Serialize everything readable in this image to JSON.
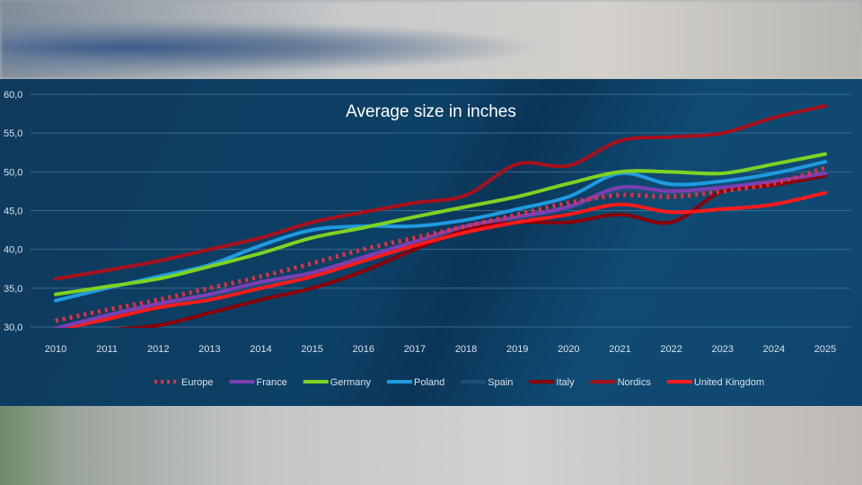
{
  "chart_data": {
    "type": "line",
    "title": "Average size in inches",
    "xlabel": "",
    "ylabel": "",
    "x": [
      2010,
      2011,
      2012,
      2013,
      2014,
      2015,
      2016,
      2017,
      2018,
      2019,
      2020,
      2021,
      2022,
      2023,
      2024,
      2025
    ],
    "ylim": [
      30,
      60
    ],
    "yticks": [
      "30,0",
      "35,0",
      "40,0",
      "45,0",
      "50,0",
      "55,0",
      "60,0"
    ],
    "grid": true,
    "legend_position": "bottom",
    "series": [
      {
        "name": "Europe",
        "color": "#e8303c",
        "dashed": true,
        "values": [
          30.8,
          32.2,
          33.5,
          35,
          36.5,
          38.2,
          40,
          41.5,
          43,
          44.5,
          46,
          47,
          46.8,
          47.5,
          48.5,
          50.5
        ]
      },
      {
        "name": "France",
        "color": "#7b3fb3",
        "values": [
          29.8,
          31.5,
          33,
          34.2,
          35.8,
          37,
          39,
          41,
          43,
          44.2,
          45.5,
          48,
          47.5,
          48,
          48.8,
          49.8
        ]
      },
      {
        "name": "Germany",
        "color": "#7ed321",
        "values": [
          34.2,
          35.2,
          36.2,
          37.8,
          39.5,
          41.5,
          42.8,
          44.2,
          45.5,
          46.8,
          48.5,
          50,
          50,
          49.8,
          51,
          52.3
        ]
      },
      {
        "name": "Poland",
        "color": "#1e9be0",
        "values": [
          33.4,
          35,
          36.5,
          38,
          40.5,
          42.5,
          43,
          43,
          43.8,
          45.2,
          46.8,
          49.8,
          48.4,
          48.8,
          49.8,
          51.3
        ]
      },
      {
        "name": "Spain",
        "color": "#1d4e78",
        "values": [
          29.6,
          31.2,
          32.7,
          34,
          35.5,
          36.8,
          38.8,
          40.8,
          42.8,
          44,
          45.3,
          47.6,
          47.2,
          47.8,
          48.6,
          49.5
        ]
      },
      {
        "name": "Italy",
        "color": "#8b0008",
        "values": [
          28.8,
          29.6,
          30.2,
          31.8,
          33.5,
          35,
          37.2,
          40,
          42.5,
          43.5,
          43.5,
          44.5,
          43.5,
          47.5,
          48.3,
          49.5
        ]
      },
      {
        "name": "Nordics",
        "color": "#a8101c",
        "values": [
          36.2,
          37.3,
          38.5,
          40,
          41.5,
          43.5,
          44.8,
          46,
          47,
          51,
          50.8,
          54,
          54.5,
          55,
          57,
          58.5
        ]
      },
      {
        "name": "United Kingdom",
        "color": "#ff1a1a",
        "values": [
          29.6,
          31,
          32.5,
          33.5,
          35,
          36.5,
          38.5,
          40.5,
          42.2,
          43.5,
          44.5,
          45.8,
          44.8,
          45.2,
          45.8,
          47.3
        ]
      }
    ]
  }
}
